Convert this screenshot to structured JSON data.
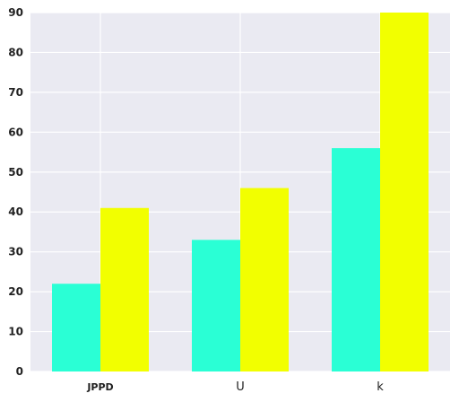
{
  "chart_data": {
    "type": "bar",
    "categories": [
      "JPPD",
      "U",
      "k"
    ],
    "series": [
      {
        "values": [
          22,
          33,
          56
        ],
        "color": "#2affd5"
      },
      {
        "values": [
          41,
          46,
          90
        ],
        "color": "#f2ff00"
      }
    ],
    "ylim": [
      0,
      90
    ],
    "yticks": [
      "0",
      "10",
      "20",
      "30",
      "40",
      "50",
      "60",
      "70",
      "80",
      "90"
    ],
    "grid": true,
    "legend": "none",
    "background": "#eaeaf2",
    "grid_color": "#ffffff",
    "bold_categories": [
      "JPPD"
    ]
  }
}
